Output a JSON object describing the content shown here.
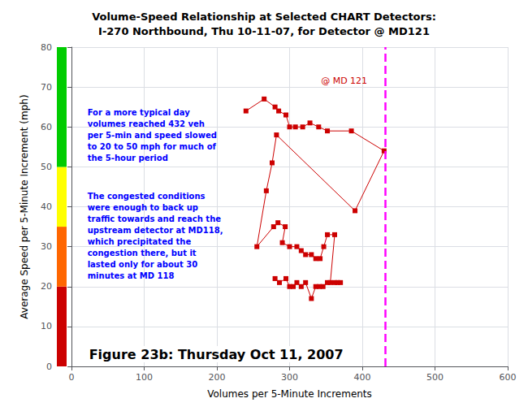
{
  "chart_data": {
    "type": "line",
    "title": "Volume-Speed Relationship at Selected CHART Detectors:\nI-270 Northbound, Thu 10-11-07, for Detector @ MD121",
    "xlabel": "Volumes per 5-Minute Increments",
    "ylabel": "Average Speed per 5-Minute Increment (mph)",
    "xlim": [
      0,
      600
    ],
    "ylim": [
      0,
      80
    ],
    "xticks": [
      0,
      100,
      200,
      300,
      400,
      500,
      600
    ],
    "yticks": [
      0,
      10,
      20,
      30,
      40,
      50,
      60,
      70,
      80
    ],
    "grid": true,
    "color": "#CC0000",
    "marker": "square",
    "x": [
      240,
      265,
      280,
      285,
      295,
      300,
      308,
      318,
      328,
      340,
      352,
      385,
      430,
      390,
      282,
      276,
      268,
      255,
      278,
      284,
      294,
      290,
      300,
      310,
      316,
      322,
      330,
      336,
      342,
      347,
      352,
      362,
      356,
      362,
      366,
      370,
      352,
      346,
      341,
      336,
      330,
      322,
      316,
      310,
      305,
      300,
      295,
      286,
      280
    ],
    "values": [
      64,
      67,
      65,
      64,
      63,
      60,
      60,
      60,
      61,
      60,
      59,
      59,
      54,
      39,
      58,
      51,
      44,
      30,
      35,
      36,
      35,
      31,
      30,
      30,
      29,
      28,
      28,
      27,
      27,
      30,
      33,
      33,
      21,
      21,
      21,
      21,
      21,
      20,
      20,
      20,
      17,
      21,
      20,
      21,
      20,
      20,
      22,
      21,
      22
    ],
    "vline": {
      "x": 432,
      "color": "#FF00FF",
      "line_style": "dashed",
      "label": "@ MD 121",
      "label_x": 375,
      "label_y": 71.5,
      "label_color": "#CC0000"
    },
    "annotations": [
      {
        "text": "For a more typical day\nvolumes reached 432 veh\nper 5-min and speed slowed\nto 20 to 50 mph for much of\nthe 5-hour period",
        "x": 22,
        "y": 65,
        "color": "#0000FF"
      },
      {
        "text": "The congested conditions\nwere enough to back up\ntraffic towards and reach the\nupstream detector at MD118,\nwhich precipitated the\ncongestion there, but it\nlasted only for about 30\nminutes at MD 118",
        "x": 22,
        "y": 44,
        "color": "#0000FF"
      }
    ],
    "figure_label": {
      "text": "Figure 23b: Thursday Oct 11, 2007",
      "x": 22,
      "y": 1
    },
    "color_bands": [
      {
        "ymin": 0,
        "ymax": 20,
        "color": "#CC0000"
      },
      {
        "ymin": 20,
        "ymax": 35,
        "color": "#FF6600"
      },
      {
        "ymin": 35,
        "ymax": 50,
        "color": "#FFFF00"
      },
      {
        "ymin": 50,
        "ymax": 80,
        "color": "#00CC00"
      }
    ]
  }
}
